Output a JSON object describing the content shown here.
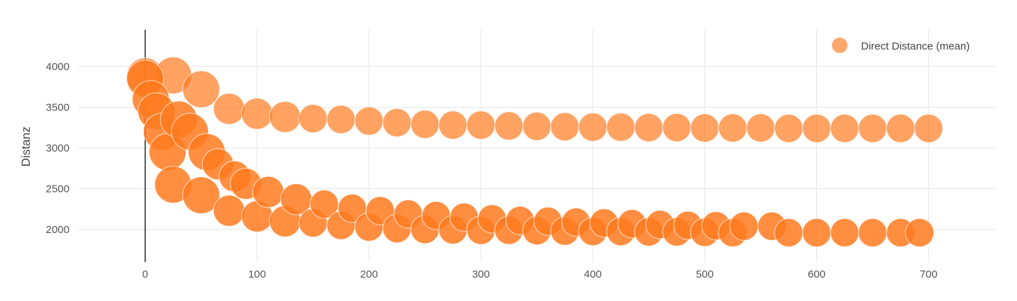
{
  "chart_data": {
    "type": "scatter",
    "ylabel": "Distanz",
    "xlabel": "",
    "xlim": [
      -60,
      760
    ],
    "ylim": [
      1600,
      4450
    ],
    "xticks": [
      0,
      100,
      200,
      300,
      400,
      500,
      600,
      700
    ],
    "yticks": [
      2000,
      2500,
      3000,
      3500,
      4000
    ],
    "grid": true,
    "legend": {
      "placement": "top-right",
      "entries": [
        "Direct Distance (mean)"
      ]
    },
    "colors": {
      "marker": "#ff7a1f",
      "marker_light": "#ff9a55",
      "grid": "#e6e6e6",
      "zero_line": "#222222"
    },
    "series": [
      {
        "name": "Direct Distance (mean)",
        "marker_opacity": 0.7,
        "points": [
          {
            "x": 0,
            "y": 3880
          },
          {
            "x": 25,
            "y": 3890
          },
          {
            "x": 50,
            "y": 3720
          },
          {
            "x": 75,
            "y": 3480
          },
          {
            "x": 100,
            "y": 3420
          },
          {
            "x": 125,
            "y": 3380
          },
          {
            "x": 150,
            "y": 3360
          },
          {
            "x": 175,
            "y": 3350
          },
          {
            "x": 200,
            "y": 3330
          },
          {
            "x": 225,
            "y": 3310
          },
          {
            "x": 250,
            "y": 3290
          },
          {
            "x": 275,
            "y": 3280
          },
          {
            "x": 300,
            "y": 3280
          },
          {
            "x": 325,
            "y": 3270
          },
          {
            "x": 350,
            "y": 3265
          },
          {
            "x": 375,
            "y": 3260
          },
          {
            "x": 400,
            "y": 3255
          },
          {
            "x": 425,
            "y": 3255
          },
          {
            "x": 450,
            "y": 3250
          },
          {
            "x": 475,
            "y": 3250
          },
          {
            "x": 500,
            "y": 3245
          },
          {
            "x": 525,
            "y": 3245
          },
          {
            "x": 550,
            "y": 3245
          },
          {
            "x": 575,
            "y": 3240
          },
          {
            "x": 600,
            "y": 3240
          },
          {
            "x": 625,
            "y": 3240
          },
          {
            "x": 650,
            "y": 3240
          },
          {
            "x": 675,
            "y": 3240
          },
          {
            "x": 700,
            "y": 3240
          }
        ]
      },
      {
        "name": "",
        "marker_opacity": 0.85,
        "points": [
          {
            "x": 0,
            "y": 3850
          },
          {
            "x": 5,
            "y": 3600
          },
          {
            "x": 10,
            "y": 3450
          },
          {
            "x": 15,
            "y": 3200
          },
          {
            "x": 20,
            "y": 2950
          },
          {
            "x": 25,
            "y": 2550
          },
          {
            "x": 30,
            "y": 3350
          },
          {
            "x": 40,
            "y": 3200
          },
          {
            "x": 50,
            "y": 2420
          },
          {
            "x": 55,
            "y": 2950
          },
          {
            "x": 65,
            "y": 2800
          },
          {
            "x": 75,
            "y": 2230
          },
          {
            "x": 80,
            "y": 2650
          },
          {
            "x": 90,
            "y": 2560
          },
          {
            "x": 100,
            "y": 2160
          },
          {
            "x": 110,
            "y": 2460
          },
          {
            "x": 125,
            "y": 2100
          },
          {
            "x": 135,
            "y": 2370
          },
          {
            "x": 150,
            "y": 2080
          },
          {
            "x": 160,
            "y": 2310
          },
          {
            "x": 175,
            "y": 2050
          },
          {
            "x": 185,
            "y": 2260
          },
          {
            "x": 200,
            "y": 2030
          },
          {
            "x": 210,
            "y": 2230
          },
          {
            "x": 225,
            "y": 2010
          },
          {
            "x": 235,
            "y": 2190
          },
          {
            "x": 250,
            "y": 2000
          },
          {
            "x": 260,
            "y": 2170
          },
          {
            "x": 275,
            "y": 1995
          },
          {
            "x": 285,
            "y": 2150
          },
          {
            "x": 300,
            "y": 1990
          },
          {
            "x": 310,
            "y": 2130
          },
          {
            "x": 325,
            "y": 1990
          },
          {
            "x": 335,
            "y": 2110
          },
          {
            "x": 350,
            "y": 1985
          },
          {
            "x": 360,
            "y": 2100
          },
          {
            "x": 375,
            "y": 1980
          },
          {
            "x": 385,
            "y": 2090
          },
          {
            "x": 400,
            "y": 1975
          },
          {
            "x": 410,
            "y": 2080
          },
          {
            "x": 425,
            "y": 1975
          },
          {
            "x": 435,
            "y": 2070
          },
          {
            "x": 450,
            "y": 1970
          },
          {
            "x": 460,
            "y": 2060
          },
          {
            "x": 475,
            "y": 1970
          },
          {
            "x": 485,
            "y": 2050
          },
          {
            "x": 500,
            "y": 1965
          },
          {
            "x": 510,
            "y": 2045
          },
          {
            "x": 525,
            "y": 1960
          },
          {
            "x": 535,
            "y": 2040
          },
          {
            "x": 560,
            "y": 2040
          },
          {
            "x": 575,
            "y": 1960
          },
          {
            "x": 600,
            "y": 1960
          },
          {
            "x": 625,
            "y": 1960
          },
          {
            "x": 650,
            "y": 1960
          },
          {
            "x": 675,
            "y": 1960
          },
          {
            "x": 692,
            "y": 1960
          }
        ]
      }
    ]
  }
}
